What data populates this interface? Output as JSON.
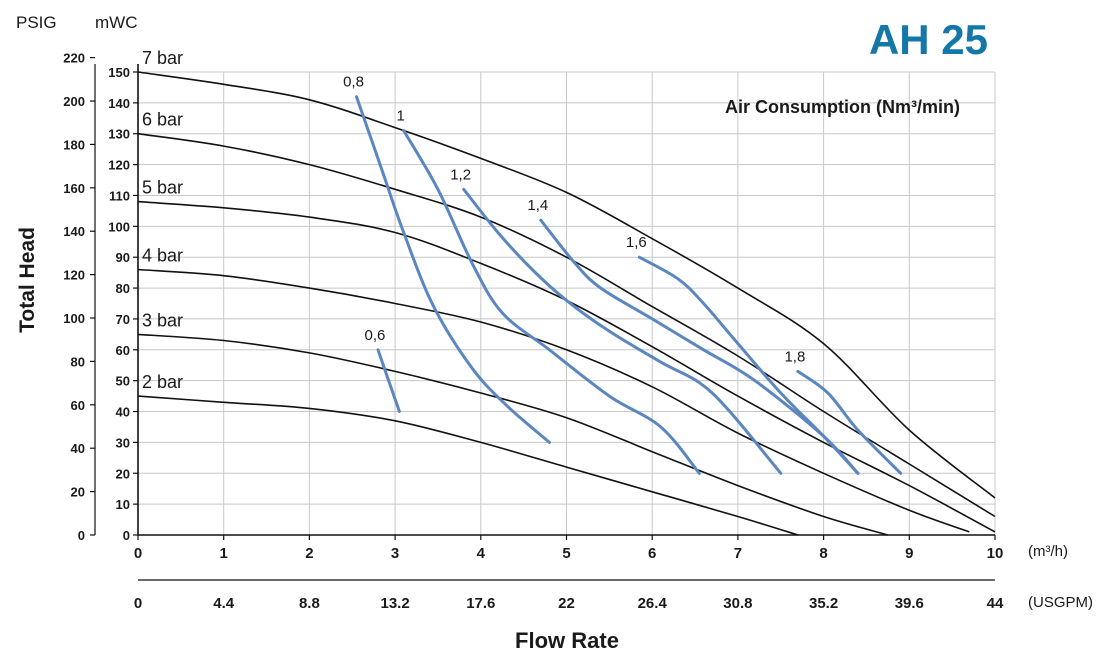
{
  "header": {
    "model": "AH 25",
    "psi_unit": "PSIG",
    "mwc_unit": "mWC",
    "y_axis_label": "Total Head",
    "air_consumption_label": "Air Consumption (Nm³/min)",
    "m3h_unit": "(m³/h)",
    "usgpm_unit": "(USGPM)",
    "x_axis_label": "Flow Rate"
  },
  "colors": {
    "brand": "#1577a8",
    "curve": "#111111",
    "air_line": "#5b86c0",
    "grid": "#c8c8c8"
  },
  "chart_data": {
    "type": "line",
    "title": "AH 25",
    "xlabel": "Flow Rate",
    "ylabel": "Total Head",
    "x_unit": "m³/h",
    "y_unit": "mWC",
    "xlim": [
      0,
      10
    ],
    "ylim": [
      0,
      150
    ],
    "grid": true,
    "x_ticks": [
      "0",
      "1",
      "2",
      "3",
      "4",
      "5",
      "6",
      "7",
      "8",
      "9",
      "10"
    ],
    "usgpm_ticks": [
      "0",
      "4.4",
      "8.8",
      "13.2",
      "17.6",
      "22",
      "26.4",
      "30.8",
      "35.2",
      "39.6",
      "44"
    ],
    "mwc_ticks": [
      "0",
      "10",
      "20",
      "30",
      "40",
      "50",
      "60",
      "70",
      "80",
      "90",
      "100",
      "110",
      "120",
      "130",
      "140",
      "150"
    ],
    "psig_ticks": [
      "0",
      "20",
      "40",
      "60",
      "80",
      "100",
      "120",
      "140",
      "160",
      "180",
      "200",
      "220"
    ],
    "pressure_series": [
      {
        "name": "7 bar",
        "points": [
          [
            0,
            150
          ],
          [
            1,
            146
          ],
          [
            2,
            141
          ],
          [
            3,
            132
          ],
          [
            4,
            122
          ],
          [
            5,
            111
          ],
          [
            6,
            96
          ],
          [
            7,
            80
          ],
          [
            8,
            62
          ],
          [
            9,
            34
          ],
          [
            10,
            12
          ]
        ]
      },
      {
        "name": "6 bar",
        "points": [
          [
            0,
            130
          ],
          [
            1,
            126
          ],
          [
            2,
            120
          ],
          [
            3,
            112
          ],
          [
            4,
            103
          ],
          [
            5,
            90
          ],
          [
            6,
            74
          ],
          [
            7,
            58
          ],
          [
            8,
            40
          ],
          [
            9,
            23
          ],
          [
            10,
            6
          ]
        ]
      },
      {
        "name": "5 bar",
        "points": [
          [
            0,
            108
          ],
          [
            1,
            106
          ],
          [
            2,
            103
          ],
          [
            3,
            98
          ],
          [
            4,
            88
          ],
          [
            5,
            76
          ],
          [
            6,
            61
          ],
          [
            7,
            45
          ],
          [
            8,
            30
          ],
          [
            9,
            16
          ],
          [
            10,
            1
          ]
        ]
      },
      {
        "name": "4 bar",
        "points": [
          [
            0,
            86
          ],
          [
            1,
            84
          ],
          [
            2,
            80
          ],
          [
            3,
            75
          ],
          [
            4,
            69
          ],
          [
            5,
            60
          ],
          [
            6,
            48
          ],
          [
            7,
            33
          ],
          [
            8,
            20
          ],
          [
            9,
            8
          ],
          [
            9.7,
            1
          ]
        ]
      },
      {
        "name": "3 bar",
        "points": [
          [
            0,
            65
          ],
          [
            1,
            63
          ],
          [
            2,
            59
          ],
          [
            3,
            53
          ],
          [
            4,
            46
          ],
          [
            5,
            38
          ],
          [
            6,
            27
          ],
          [
            7,
            16
          ],
          [
            8,
            6
          ],
          [
            8.75,
            0
          ]
        ]
      },
      {
        "name": "2 bar",
        "points": [
          [
            0,
            45
          ],
          [
            1,
            43
          ],
          [
            2,
            41
          ],
          [
            3,
            37
          ],
          [
            4,
            30
          ],
          [
            5,
            22
          ],
          [
            6,
            14
          ],
          [
            7,
            6
          ],
          [
            7.7,
            0
          ]
        ]
      }
    ],
    "air_series": [
      {
        "name": "0,6",
        "points": [
          [
            2.8,
            60
          ],
          [
            2.9,
            52
          ],
          [
            3.05,
            40
          ]
        ]
      },
      {
        "name": "0,8",
        "points": [
          [
            2.55,
            142
          ],
          [
            2.85,
            118
          ],
          [
            3.1,
            98
          ],
          [
            3.45,
            74
          ],
          [
            3.9,
            54
          ],
          [
            4.3,
            42
          ],
          [
            4.8,
            30
          ]
        ]
      },
      {
        "name": "1",
        "points": [
          [
            3.1,
            131
          ],
          [
            3.5,
            112
          ],
          [
            3.9,
            88
          ],
          [
            4.25,
            72
          ],
          [
            4.8,
            60
          ],
          [
            5.5,
            45
          ],
          [
            6.1,
            35
          ],
          [
            6.55,
            20
          ]
        ]
      },
      {
        "name": "1,2",
        "points": [
          [
            3.8,
            112
          ],
          [
            4.2,
            98
          ],
          [
            4.6,
            86
          ],
          [
            5.0,
            76
          ],
          [
            5.5,
            66
          ],
          [
            6.1,
            56
          ],
          [
            6.7,
            46
          ],
          [
            7.5,
            20
          ]
        ]
      },
      {
        "name": "1,4",
        "points": [
          [
            4.7,
            102
          ],
          [
            5.1,
            88
          ],
          [
            5.4,
            80
          ],
          [
            6.0,
            70
          ],
          [
            6.6,
            60
          ],
          [
            7.2,
            50
          ],
          [
            8.0,
            32
          ],
          [
            8.4,
            20
          ]
        ]
      },
      {
        "name": "1,6",
        "points": [
          [
            5.85,
            90
          ],
          [
            6.3,
            83
          ],
          [
            6.6,
            75
          ],
          [
            7.0,
            62
          ],
          [
            7.5,
            46
          ],
          [
            8.0,
            32
          ],
          [
            8.4,
            20
          ]
        ]
      },
      {
        "name": "1,8",
        "points": [
          [
            7.7,
            53
          ],
          [
            8.05,
            46
          ],
          [
            8.4,
            34
          ],
          [
            8.9,
            20
          ]
        ]
      }
    ]
  }
}
